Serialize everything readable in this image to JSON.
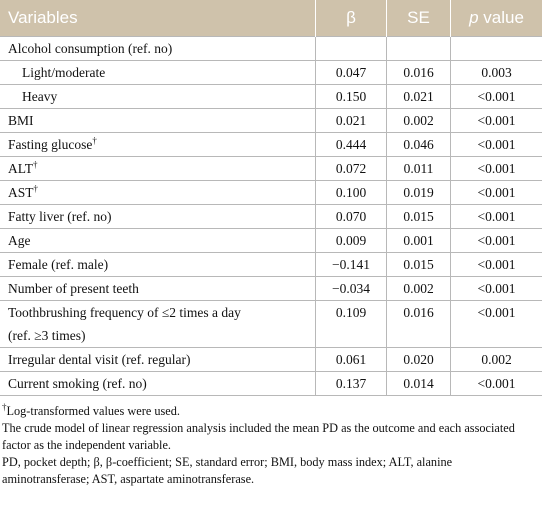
{
  "table": {
    "header": {
      "variable": "Variables",
      "beta": "β",
      "se": "SE",
      "p_italic": "p",
      "p_rest": "value"
    },
    "rows": [
      {
        "label": [
          "Alcohol consumption (ref. no)"
        ],
        "indent": false,
        "beta": "",
        "se": "",
        "p": ""
      },
      {
        "label": [
          "Light/moderate"
        ],
        "indent": true,
        "beta": "0.047",
        "se": "0.016",
        "p": "0.003"
      },
      {
        "label": [
          "Heavy"
        ],
        "indent": true,
        "beta": "0.150",
        "se": "0.021",
        "p": "<0.001"
      },
      {
        "label": [
          "BMI"
        ],
        "indent": false,
        "beta": "0.021",
        "se": "0.002",
        "p": "<0.001"
      },
      {
        "label": [
          "Fasting glucose"
        ],
        "sup": "†",
        "indent": false,
        "beta": "0.444",
        "se": "0.046",
        "p": "<0.001"
      },
      {
        "label": [
          "ALT"
        ],
        "sup": "†",
        "indent": false,
        "beta": "0.072",
        "se": "0.011",
        "p": "<0.001"
      },
      {
        "label": [
          "AST"
        ],
        "sup": "†",
        "indent": false,
        "beta": "0.100",
        "se": "0.019",
        "p": "<0.001"
      },
      {
        "label": [
          "Fatty liver (ref. no)"
        ],
        "indent": false,
        "beta": "0.070",
        "se": "0.015",
        "p": "<0.001"
      },
      {
        "label": [
          "Age"
        ],
        "indent": false,
        "beta": "0.009",
        "se": "0.001",
        "p": "<0.001"
      },
      {
        "label": [
          "Female (ref. male)"
        ],
        "indent": false,
        "beta": "−0.141",
        "se": "0.015",
        "p": "<0.001"
      },
      {
        "label": [
          "Number of present teeth"
        ],
        "indent": false,
        "beta": "−0.034",
        "se": "0.002",
        "p": "<0.001"
      },
      {
        "label": [
          "Toothbrushing frequency of ≤2 times a day",
          "(ref. ≥3 times)"
        ],
        "indent": false,
        "beta": "0.109",
        "se": "0.016",
        "p": "<0.001"
      },
      {
        "label": [
          "Irregular dental visit (ref. regular)"
        ],
        "indent": false,
        "beta": "0.061",
        "se": "0.020",
        "p": "0.002"
      },
      {
        "label": [
          "Current smoking (ref. no)"
        ],
        "indent": false,
        "beta": "0.137",
        "se": "0.014",
        "p": "<0.001"
      }
    ],
    "footnotes": {
      "dagger": "†",
      "dagger_text": "Log-transformed values were used.",
      "lines": [
        "The crude model of linear regression analysis included the mean PD as the outcome and each associated factor as the independent variable.",
        "PD, pocket depth; β, β-coefficient; SE, standard error; BMI, body mass index; ALT, alanine aminotransferase; AST, aspartate aminotransferase."
      ]
    }
  }
}
